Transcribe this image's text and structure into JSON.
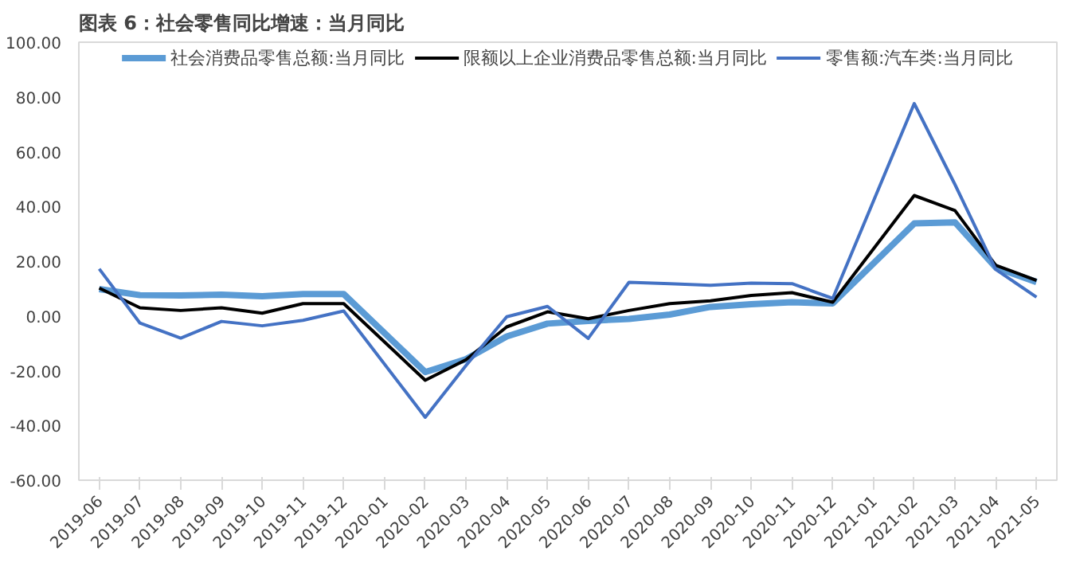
{
  "chart_data": {
    "type": "line",
    "title": "图表 6：社会零售同比增速：当月同比",
    "categories": [
      "2019-06",
      "2019-07",
      "2019-08",
      "2019-09",
      "2019-10",
      "2019-11",
      "2019-12",
      "2020-01",
      "2020-02",
      "2020-03",
      "2020-04",
      "2020-05",
      "2020-06",
      "2020-07",
      "2020-08",
      "2020-09",
      "2020-10",
      "2020-11",
      "2020-12",
      "2021-01",
      "2021-02",
      "2021-03",
      "2021-04",
      "2021-05"
    ],
    "series": [
      {
        "name": "社会消费品零售总额:当月同比",
        "color": "#5b9bd5",
        "values": [
          9.8,
          7.6,
          7.5,
          7.8,
          7.2,
          8.0,
          8.0,
          null,
          -20.5,
          -15.8,
          -7.5,
          -2.8,
          -1.8,
          -1.1,
          0.5,
          3.3,
          4.3,
          5.0,
          4.6,
          null,
          33.8,
          34.2,
          17.7,
          12.4
        ]
      },
      {
        "name": "限额以上企业消费品零售总额:当月同比",
        "color": "#000000",
        "values": [
          10.2,
          3.0,
          2.0,
          3.0,
          1.0,
          4.5,
          4.5,
          null,
          -23.5,
          -16.0,
          -4.0,
          1.5,
          -1.0,
          2.0,
          4.5,
          5.5,
          7.5,
          8.5,
          5.0,
          null,
          44.0,
          38.5,
          18.5,
          13.0
        ]
      },
      {
        "name": "零售额:汽车类:当月同比",
        "color": "#4472c4",
        "values": [
          17.2,
          -2.6,
          -8.1,
          -2.0,
          -3.6,
          -1.6,
          1.8,
          null,
          -37.0,
          -18.1,
          -0.3,
          3.5,
          -8.2,
          12.3,
          11.8,
          11.2,
          12.0,
          11.8,
          6.4,
          null,
          77.6,
          48.0,
          17.0,
          6.9
        ]
      }
    ],
    "ylim": [
      -60,
      100
    ],
    "yticks": [
      {
        "value": -60,
        "label": "-60.00"
      },
      {
        "value": -40,
        "label": "-40.00"
      },
      {
        "value": -20,
        "label": "-20.00"
      },
      {
        "value": 0,
        "label": "0.00"
      },
      {
        "value": 20,
        "label": "20.00"
      },
      {
        "value": 40,
        "label": "40.00"
      },
      {
        "value": 60,
        "label": "60.00"
      },
      {
        "value": 80,
        "label": "80.00"
      },
      {
        "value": 100,
        "label": "100.00"
      }
    ],
    "grid": false,
    "legend": "top"
  }
}
